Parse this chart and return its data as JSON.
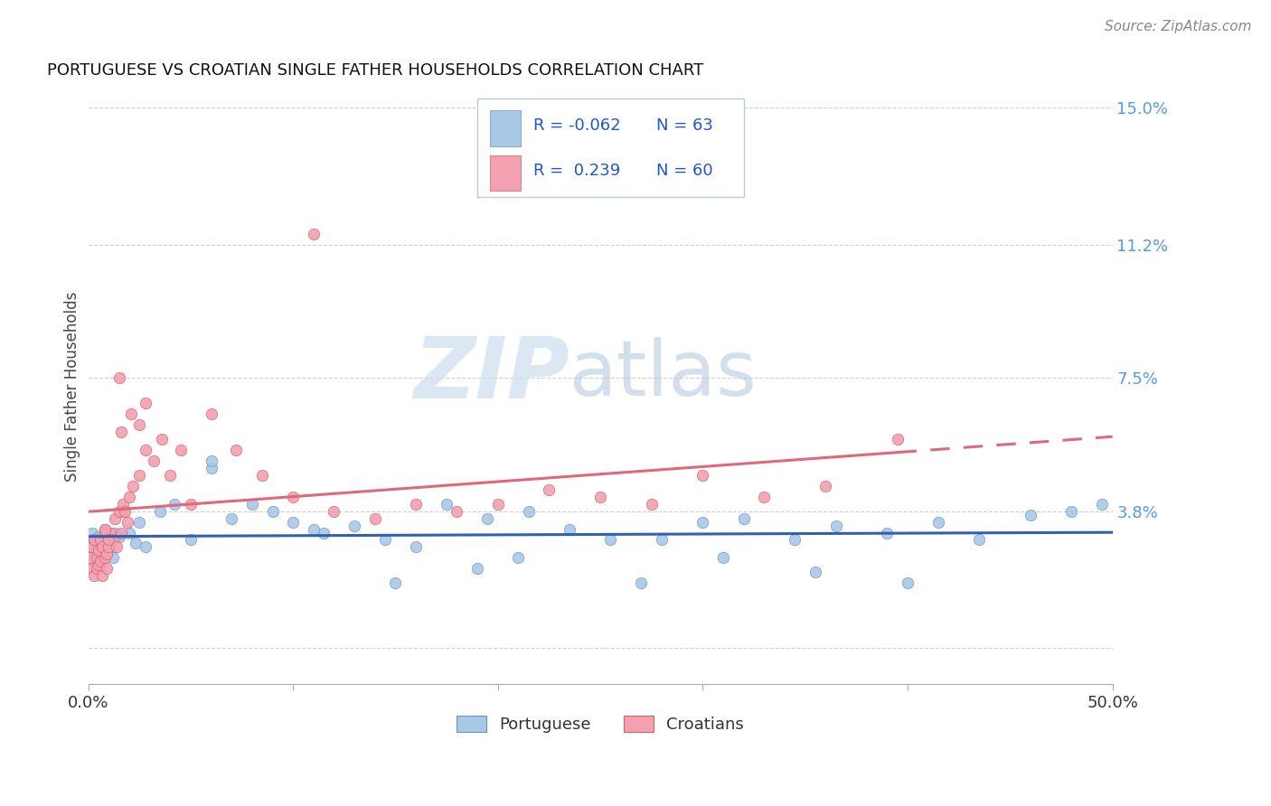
{
  "title": "PORTUGUESE VS CROATIAN SINGLE FATHER HOUSEHOLDS CORRELATION CHART",
  "source": "Source: ZipAtlas.com",
  "ylabel": "Single Father Households",
  "xlim": [
    0,
    0.5
  ],
  "ylim": [
    -0.01,
    0.155
  ],
  "xtick_values": [
    0.0,
    0.1,
    0.2,
    0.3,
    0.4,
    0.5
  ],
  "xtick_labels": [
    "0.0%",
    "",
    "",
    "",
    "",
    "50.0%"
  ],
  "ytick_values": [
    0.0,
    0.038,
    0.075,
    0.112,
    0.15
  ],
  "ytick_labels": [
    "",
    "3.8%",
    "7.5%",
    "11.2%",
    "15.0%"
  ],
  "portuguese_color": "#a8c8e8",
  "croatian_color": "#f4a0b0",
  "portuguese_edge_color": "#7090c0",
  "croatian_edge_color": "#d06070",
  "portuguese_line_color": "#3060b0",
  "croatian_line_color": "#e06878",
  "R_portuguese": -0.062,
  "R_croatian": 0.239,
  "N_portuguese": 63,
  "N_croatian": 60,
  "portuguese_scatter_x": [
    0.001,
    0.002,
    0.002,
    0.003,
    0.003,
    0.004,
    0.004,
    0.005,
    0.005,
    0.006,
    0.006,
    0.007,
    0.007,
    0.008,
    0.008,
    0.009,
    0.01,
    0.011,
    0.012,
    0.013,
    0.015,
    0.017,
    0.02,
    0.023,
    0.025,
    0.028,
    0.035,
    0.042,
    0.05,
    0.06,
    0.07,
    0.08,
    0.09,
    0.1,
    0.115,
    0.13,
    0.145,
    0.16,
    0.175,
    0.195,
    0.215,
    0.235,
    0.255,
    0.28,
    0.3,
    0.32,
    0.345,
    0.365,
    0.39,
    0.415,
    0.435,
    0.46,
    0.48,
    0.495,
    0.19,
    0.21,
    0.27,
    0.31,
    0.355,
    0.4,
    0.06,
    0.11,
    0.15
  ],
  "portuguese_scatter_y": [
    0.028,
    0.032,
    0.026,
    0.03,
    0.024,
    0.028,
    0.025,
    0.031,
    0.027,
    0.029,
    0.023,
    0.03,
    0.025,
    0.033,
    0.026,
    0.028,
    0.031,
    0.027,
    0.025,
    0.032,
    0.031,
    0.038,
    0.032,
    0.029,
    0.035,
    0.028,
    0.038,
    0.04,
    0.03,
    0.05,
    0.036,
    0.04,
    0.038,
    0.035,
    0.032,
    0.034,
    0.03,
    0.028,
    0.04,
    0.036,
    0.038,
    0.033,
    0.03,
    0.03,
    0.035,
    0.036,
    0.03,
    0.034,
    0.032,
    0.035,
    0.03,
    0.037,
    0.038,
    0.04,
    0.022,
    0.025,
    0.018,
    0.025,
    0.021,
    0.018,
    0.052,
    0.033,
    0.018
  ],
  "croatian_scatter_x": [
    0.001,
    0.002,
    0.002,
    0.003,
    0.003,
    0.004,
    0.004,
    0.005,
    0.005,
    0.006,
    0.006,
    0.007,
    0.007,
    0.008,
    0.008,
    0.009,
    0.009,
    0.01,
    0.011,
    0.012,
    0.013,
    0.014,
    0.015,
    0.016,
    0.017,
    0.018,
    0.019,
    0.02,
    0.022,
    0.025,
    0.028,
    0.032,
    0.036,
    0.04,
    0.045,
    0.05,
    0.06,
    0.072,
    0.085,
    0.1,
    0.12,
    0.14,
    0.16,
    0.18,
    0.2,
    0.225,
    0.25,
    0.275,
    0.3,
    0.33,
    0.36,
    0.395,
    0.11,
    0.016,
    0.028,
    0.015,
    0.021,
    0.025,
    0.008,
    0.01
  ],
  "croatian_scatter_y": [
    0.025,
    0.022,
    0.028,
    0.02,
    0.03,
    0.025,
    0.022,
    0.027,
    0.023,
    0.03,
    0.024,
    0.028,
    0.02,
    0.025,
    0.032,
    0.026,
    0.022,
    0.028,
    0.032,
    0.03,
    0.036,
    0.028,
    0.038,
    0.032,
    0.04,
    0.038,
    0.035,
    0.042,
    0.045,
    0.048,
    0.055,
    0.052,
    0.058,
    0.048,
    0.055,
    0.04,
    0.065,
    0.055,
    0.048,
    0.042,
    0.038,
    0.036,
    0.04,
    0.038,
    0.04,
    0.044,
    0.042,
    0.04,
    0.048,
    0.042,
    0.045,
    0.058,
    0.115,
    0.06,
    0.068,
    0.075,
    0.065,
    0.062,
    0.033,
    0.03
  ],
  "watermark_zip_color": "#ccdff0",
  "watermark_atlas_color": "#b0c8dc",
  "background_color": "#ffffff",
  "grid_color": "#d0d0d0",
  "legend_box_color": "#e8eef8",
  "legend_border_color": "#b8c8e0",
  "legend_text_color": "#2255cc",
  "legend_N_color": "#222222",
  "right_axis_color": "#5599ee"
}
